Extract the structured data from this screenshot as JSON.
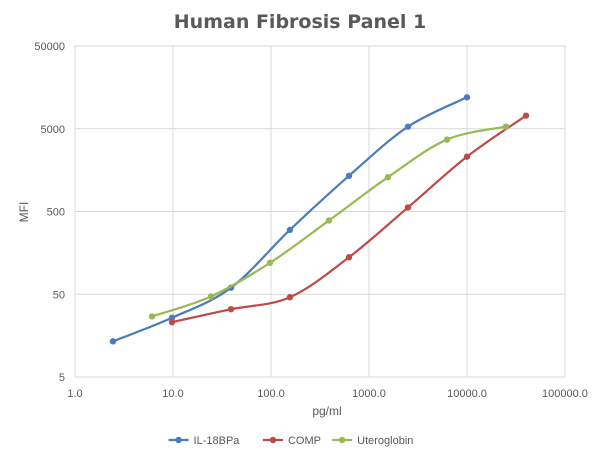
{
  "chart_data": {
    "type": "scatter",
    "title": "Human Fibrosis Panel 1",
    "xlabel": "pg/ml",
    "ylabel": "MFI",
    "xscale": "log",
    "yscale": "log",
    "xlim": [
      1,
      100000
    ],
    "ylim": [
      5,
      50000
    ],
    "x_ticks": [
      {
        "value": 1,
        "label": "1.0"
      },
      {
        "value": 10,
        "label": "10.0"
      },
      {
        "value": 100,
        "label": "100.0"
      },
      {
        "value": 1000,
        "label": "1000.0"
      },
      {
        "value": 10000,
        "label": "10000.0"
      },
      {
        "value": 100000,
        "label": "100000.0"
      }
    ],
    "y_ticks": [
      {
        "value": 5,
        "label": "5"
      },
      {
        "value": 50,
        "label": "50"
      },
      {
        "value": 500,
        "label": "500"
      },
      {
        "value": 5000,
        "label": "5000"
      },
      {
        "value": 50000,
        "label": "50000"
      }
    ],
    "grid": true,
    "legend": "bottom",
    "series": [
      {
        "name": "IL-18BPa",
        "color": "#4a7ebb",
        "points": [
          [
            2.44,
            13.5
          ],
          [
            9.77,
            26
          ],
          [
            39.1,
            60
          ],
          [
            156,
            300
          ],
          [
            625,
            1350
          ],
          [
            2500,
            5300
          ],
          [
            10000,
            12000
          ]
        ]
      },
      {
        "name": "COMP",
        "color": "#be4b48",
        "points": [
          [
            9.77,
            23
          ],
          [
            39.1,
            33
          ],
          [
            156,
            46
          ],
          [
            625,
            140
          ],
          [
            2500,
            560
          ],
          [
            10000,
            2300
          ],
          [
            40000,
            7200
          ]
        ]
      },
      {
        "name": "Uteroglobin",
        "color": "#98b954",
        "points": [
          [
            6.1,
            27
          ],
          [
            24.4,
            47
          ],
          [
            97.7,
            120
          ],
          [
            391,
            390
          ],
          [
            1563,
            1300
          ],
          [
            6250,
            3700
          ],
          [
            25000,
            5300
          ]
        ]
      }
    ]
  }
}
